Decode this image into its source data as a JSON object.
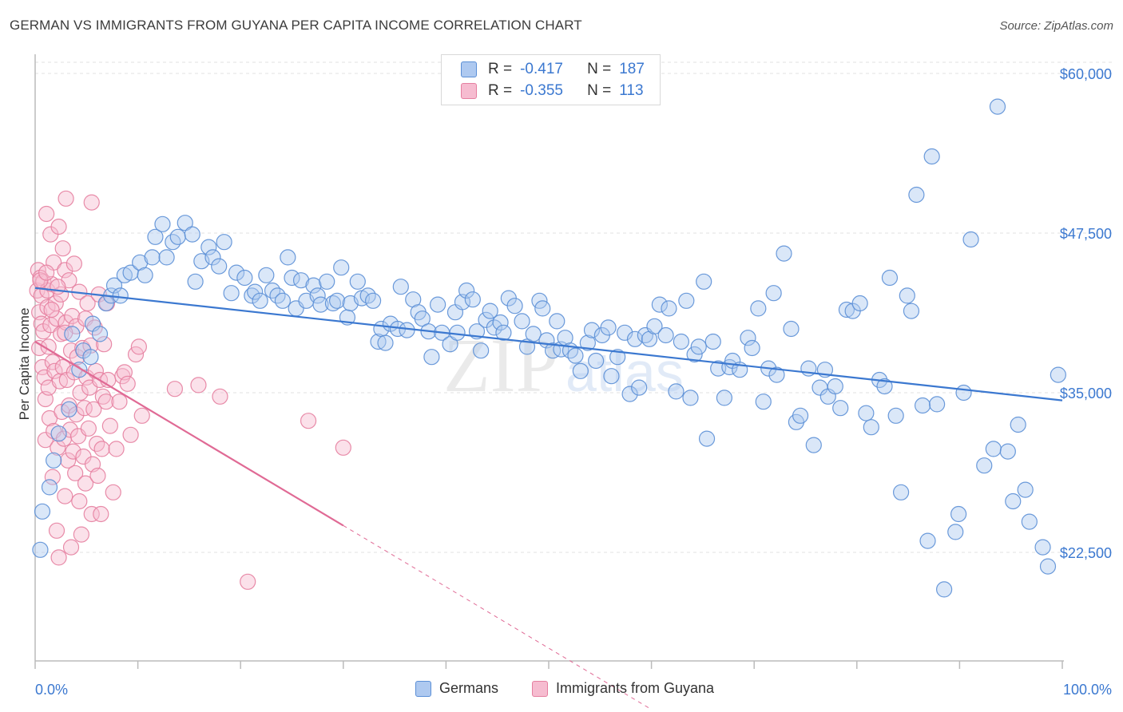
{
  "title": "GERMAN VS IMMIGRANTS FROM GUYANA PER CAPITA INCOME CORRELATION CHART",
  "source": "Source: ZipAtlas.com",
  "watermark": {
    "zip": "ZIP",
    "atlas": "atlas"
  },
  "legend": {
    "r_label": "R =",
    "n_label": "N =",
    "rows": [
      {
        "series": "Germans",
        "r": "-0.417",
        "n": "187",
        "fill": "#aec9f0",
        "stroke": "#5b8fd6"
      },
      {
        "series": "Immigrants from Guyana",
        "r": "-0.355",
        "n": "113",
        "fill": "#f6bcd0",
        "stroke": "#e57fa0"
      }
    ]
  },
  "chart_data": {
    "type": "scatter",
    "title": "GERMAN VS IMMIGRANTS FROM GUYANA PER CAPITA INCOME CORRELATION CHART",
    "xlabel": "",
    "ylabel": "Per Capita Income",
    "x_unit": "%",
    "xlim": [
      0,
      100
    ],
    "ylim": [
      14000,
      62000
    ],
    "y_ticks": [
      22500,
      35000,
      47500,
      60000
    ],
    "y_tick_labels": [
      "$22,500",
      "$35,000",
      "$47,500",
      "$60,000"
    ],
    "x_tick_labels": [
      "0.0%",
      "100.0%"
    ],
    "grid": true,
    "legend_position": "top-center",
    "colors": {
      "germans": "#3b78d0",
      "guyana": "#e06a95",
      "axis_text": "#3b78d0"
    },
    "series": [
      {
        "name": "Germans",
        "trend": {
          "x0": 0,
          "y0": 43200,
          "x1": 100,
          "y1": 34400
        },
        "points": [
          [
            0.5,
            22700
          ],
          [
            0.7,
            25700
          ],
          [
            1.4,
            27600
          ],
          [
            1.8,
            29700
          ],
          [
            2.3,
            31800
          ],
          [
            3.3,
            33700
          ],
          [
            3.6,
            39600
          ],
          [
            4.3,
            36800
          ],
          [
            4.7,
            38300
          ],
          [
            5.4,
            37800
          ],
          [
            5.6,
            40400
          ],
          [
            6.3,
            39600
          ],
          [
            6.9,
            42000
          ],
          [
            7.4,
            42600
          ],
          [
            7.7,
            43400
          ],
          [
            8.3,
            42600
          ],
          [
            8.7,
            44200
          ],
          [
            9.3,
            44400
          ],
          [
            10.2,
            45200
          ],
          [
            10.7,
            44200
          ],
          [
            11.4,
            45600
          ],
          [
            11.7,
            47200
          ],
          [
            12.4,
            48200
          ],
          [
            12.8,
            45600
          ],
          [
            13.4,
            46800
          ],
          [
            13.9,
            47200
          ],
          [
            14.6,
            48300
          ],
          [
            15.3,
            47400
          ],
          [
            15.6,
            43700
          ],
          [
            16.2,
            45300
          ],
          [
            16.9,
            46400
          ],
          [
            17.3,
            45600
          ],
          [
            17.9,
            44900
          ],
          [
            18.4,
            46800
          ],
          [
            19.1,
            42800
          ],
          [
            19.6,
            44400
          ],
          [
            20.4,
            44000
          ],
          [
            21.1,
            42600
          ],
          [
            21.4,
            42900
          ],
          [
            21.9,
            42200
          ],
          [
            22.5,
            44200
          ],
          [
            23.1,
            43000
          ],
          [
            23.6,
            42600
          ],
          [
            24.1,
            42200
          ],
          [
            24.6,
            45600
          ],
          [
            25.0,
            44000
          ],
          [
            25.4,
            41600
          ],
          [
            25.9,
            43800
          ],
          [
            26.4,
            42200
          ],
          [
            27.1,
            43400
          ],
          [
            27.5,
            42600
          ],
          [
            27.8,
            41900
          ],
          [
            28.4,
            43700
          ],
          [
            29.0,
            42000
          ],
          [
            29.4,
            42200
          ],
          [
            29.8,
            44800
          ],
          [
            30.4,
            40900
          ],
          [
            30.7,
            42000
          ],
          [
            31.4,
            43700
          ],
          [
            31.8,
            42400
          ],
          [
            32.4,
            42600
          ],
          [
            32.9,
            42200
          ],
          [
            33.4,
            39000
          ],
          [
            33.7,
            40000
          ],
          [
            34.1,
            38900
          ],
          [
            34.6,
            40400
          ],
          [
            35.3,
            40000
          ],
          [
            35.6,
            43300
          ],
          [
            36.2,
            39900
          ],
          [
            36.8,
            42300
          ],
          [
            37.3,
            41300
          ],
          [
            37.7,
            40800
          ],
          [
            38.3,
            39800
          ],
          [
            38.6,
            37800
          ],
          [
            39.2,
            41900
          ],
          [
            39.6,
            39700
          ],
          [
            40.4,
            38800
          ],
          [
            40.9,
            41300
          ],
          [
            41.1,
            39700
          ],
          [
            41.6,
            42100
          ],
          [
            42.0,
            43000
          ],
          [
            42.6,
            42300
          ],
          [
            43.0,
            39800
          ],
          [
            43.4,
            38300
          ],
          [
            43.9,
            40700
          ],
          [
            44.3,
            41400
          ],
          [
            44.7,
            40100
          ],
          [
            45.3,
            40500
          ],
          [
            45.6,
            39700
          ],
          [
            46.1,
            42400
          ],
          [
            46.7,
            41800
          ],
          [
            47.4,
            40600
          ],
          [
            47.9,
            38600
          ],
          [
            48.5,
            39600
          ],
          [
            49.1,
            42200
          ],
          [
            49.4,
            41600
          ],
          [
            49.8,
            39100
          ],
          [
            50.4,
            38300
          ],
          [
            50.8,
            40600
          ],
          [
            51.2,
            38400
          ],
          [
            51.6,
            39300
          ],
          [
            52.1,
            38300
          ],
          [
            52.6,
            37900
          ],
          [
            53.1,
            36700
          ],
          [
            53.8,
            38900
          ],
          [
            54.2,
            39900
          ],
          [
            54.6,
            37500
          ],
          [
            55.2,
            39500
          ],
          [
            55.8,
            40100
          ],
          [
            56.1,
            36300
          ],
          [
            56.7,
            37800
          ],
          [
            57.4,
            39700
          ],
          [
            57.9,
            34900
          ],
          [
            58.4,
            39200
          ],
          [
            58.8,
            35400
          ],
          [
            59.4,
            39500
          ],
          [
            59.8,
            39200
          ],
          [
            60.3,
            40200
          ],
          [
            60.8,
            41900
          ],
          [
            61.4,
            39500
          ],
          [
            61.7,
            41600
          ],
          [
            62.4,
            35100
          ],
          [
            62.9,
            39000
          ],
          [
            63.4,
            42200
          ],
          [
            63.8,
            34600
          ],
          [
            64.2,
            38000
          ],
          [
            64.6,
            38600
          ],
          [
            65.1,
            43700
          ],
          [
            65.4,
            31400
          ],
          [
            66.0,
            39000
          ],
          [
            66.5,
            36900
          ],
          [
            67.1,
            34600
          ],
          [
            67.6,
            37000
          ],
          [
            67.9,
            37500
          ],
          [
            68.6,
            36800
          ],
          [
            69.4,
            39300
          ],
          [
            69.8,
            38500
          ],
          [
            70.4,
            41600
          ],
          [
            70.9,
            34300
          ],
          [
            71.4,
            36900
          ],
          [
            71.9,
            42800
          ],
          [
            72.2,
            36400
          ],
          [
            72.9,
            45900
          ],
          [
            73.6,
            40000
          ],
          [
            74.1,
            32700
          ],
          [
            74.5,
            33200
          ],
          [
            75.3,
            36900
          ],
          [
            75.8,
            30900
          ],
          [
            76.4,
            35400
          ],
          [
            76.9,
            36800
          ],
          [
            77.2,
            34700
          ],
          [
            77.9,
            35500
          ],
          [
            78.4,
            33800
          ],
          [
            79.0,
            41500
          ],
          [
            79.6,
            41400
          ],
          [
            80.3,
            42000
          ],
          [
            80.9,
            33400
          ],
          [
            81.4,
            32300
          ],
          [
            82.2,
            36000
          ],
          [
            82.7,
            35500
          ],
          [
            83.2,
            44000
          ],
          [
            83.8,
            33200
          ],
          [
            84.3,
            27200
          ],
          [
            84.9,
            42600
          ],
          [
            85.3,
            41400
          ],
          [
            85.8,
            50500
          ],
          [
            86.4,
            34000
          ],
          [
            86.9,
            23400
          ],
          [
            87.3,
            53500
          ],
          [
            87.8,
            34100
          ],
          [
            88.5,
            19600
          ],
          [
            89.6,
            24100
          ],
          [
            89.9,
            25500
          ],
          [
            90.4,
            35000
          ],
          [
            91.1,
            47000
          ],
          [
            92.4,
            29300
          ],
          [
            93.3,
            30600
          ],
          [
            93.7,
            57400
          ],
          [
            94.7,
            30400
          ],
          [
            95.2,
            26500
          ],
          [
            95.7,
            32500
          ],
          [
            96.4,
            27400
          ],
          [
            96.8,
            24900
          ],
          [
            98.1,
            22900
          ],
          [
            98.6,
            21400
          ],
          [
            99.6,
            36400
          ]
        ]
      },
      {
        "name": "Immigrants from Guyana",
        "trend": {
          "x0": 0,
          "y0": 39000,
          "x1": 30,
          "y1": 24600,
          "dash_to_x": 60,
          "dash_to_y": 10200
        },
        "points": [
          [
            0.2,
            43000
          ],
          [
            0.3,
            44600
          ],
          [
            0.4,
            41300
          ],
          [
            0.4,
            38500
          ],
          [
            0.5,
            44000
          ],
          [
            0.6,
            42600
          ],
          [
            0.6,
            40400
          ],
          [
            0.7,
            37000
          ],
          [
            0.8,
            43700
          ],
          [
            0.8,
            39800
          ],
          [
            0.9,
            36200
          ],
          [
            1.0,
            34500
          ],
          [
            1.0,
            31300
          ],
          [
            1.1,
            49000
          ],
          [
            1.2,
            43000
          ],
          [
            1.2,
            41700
          ],
          [
            1.3,
            38600
          ],
          [
            1.3,
            35400
          ],
          [
            1.4,
            33000
          ],
          [
            1.5,
            47400
          ],
          [
            1.5,
            40300
          ],
          [
            1.6,
            43500
          ],
          [
            1.7,
            37400
          ],
          [
            1.7,
            28400
          ],
          [
            1.8,
            45200
          ],
          [
            1.8,
            32000
          ],
          [
            1.9,
            36700
          ],
          [
            2.0,
            42000
          ],
          [
            2.1,
            24200
          ],
          [
            2.1,
            40800
          ],
          [
            2.2,
            30700
          ],
          [
            2.3,
            22100
          ],
          [
            2.3,
            48000
          ],
          [
            2.4,
            35900
          ],
          [
            2.5,
            42700
          ],
          [
            2.5,
            39600
          ],
          [
            2.6,
            33500
          ],
          [
            2.7,
            46300
          ],
          [
            2.7,
            37000
          ],
          [
            2.8,
            31400
          ],
          [
            2.9,
            44600
          ],
          [
            2.9,
            26900
          ],
          [
            3.0,
            50200
          ],
          [
            3.0,
            40500
          ],
          [
            3.1,
            36000
          ],
          [
            3.2,
            29700
          ],
          [
            3.3,
            34000
          ],
          [
            3.3,
            43800
          ],
          [
            3.4,
            32100
          ],
          [
            3.5,
            38300
          ],
          [
            3.5,
            22900
          ],
          [
            3.6,
            41000
          ],
          [
            3.7,
            30400
          ],
          [
            3.8,
            36600
          ],
          [
            3.8,
            45100
          ],
          [
            3.9,
            28700
          ],
          [
            4.0,
            33300
          ],
          [
            4.0,
            40200
          ],
          [
            4.1,
            37800
          ],
          [
            4.2,
            31600
          ],
          [
            4.3,
            42900
          ],
          [
            4.3,
            26500
          ],
          [
            4.4,
            35000
          ],
          [
            4.5,
            23900
          ],
          [
            4.6,
            38500
          ],
          [
            4.7,
            30000
          ],
          [
            4.8,
            33800
          ],
          [
            4.9,
            40800
          ],
          [
            4.9,
            27900
          ],
          [
            5.0,
            36200
          ],
          [
            5.1,
            42000
          ],
          [
            5.2,
            32200
          ],
          [
            5.3,
            35400
          ],
          [
            5.4,
            38700
          ],
          [
            5.5,
            25500
          ],
          [
            5.5,
            49900
          ],
          [
            5.6,
            29400
          ],
          [
            5.7,
            33700
          ],
          [
            5.8,
            40100
          ],
          [
            5.9,
            36700
          ],
          [
            6.0,
            31000
          ],
          [
            6.1,
            28500
          ],
          [
            6.2,
            42700
          ],
          [
            6.3,
            36000
          ],
          [
            6.4,
            25500
          ],
          [
            6.5,
            30600
          ],
          [
            6.6,
            34700
          ],
          [
            6.7,
            38800
          ],
          [
            6.9,
            34300
          ],
          [
            7.0,
            42000
          ],
          [
            7.1,
            36000
          ],
          [
            7.3,
            32400
          ],
          [
            7.6,
            27200
          ],
          [
            7.9,
            30600
          ],
          [
            8.2,
            34300
          ],
          [
            8.5,
            36300
          ],
          [
            8.7,
            36600
          ],
          [
            9.0,
            35700
          ],
          [
            9.3,
            31700
          ],
          [
            9.8,
            38000
          ],
          [
            10.1,
            38600
          ],
          [
            10.4,
            33200
          ],
          [
            13.6,
            35300
          ],
          [
            15.9,
            35600
          ],
          [
            18.0,
            34700
          ],
          [
            20.7,
            20200
          ],
          [
            26.6,
            32800
          ],
          [
            30.0,
            30700
          ],
          [
            0.5,
            43800
          ],
          [
            1.1,
            44400
          ],
          [
            1.6,
            41500
          ],
          [
            2.2,
            43300
          ],
          [
            2.9,
            39700
          ]
        ]
      }
    ]
  }
}
